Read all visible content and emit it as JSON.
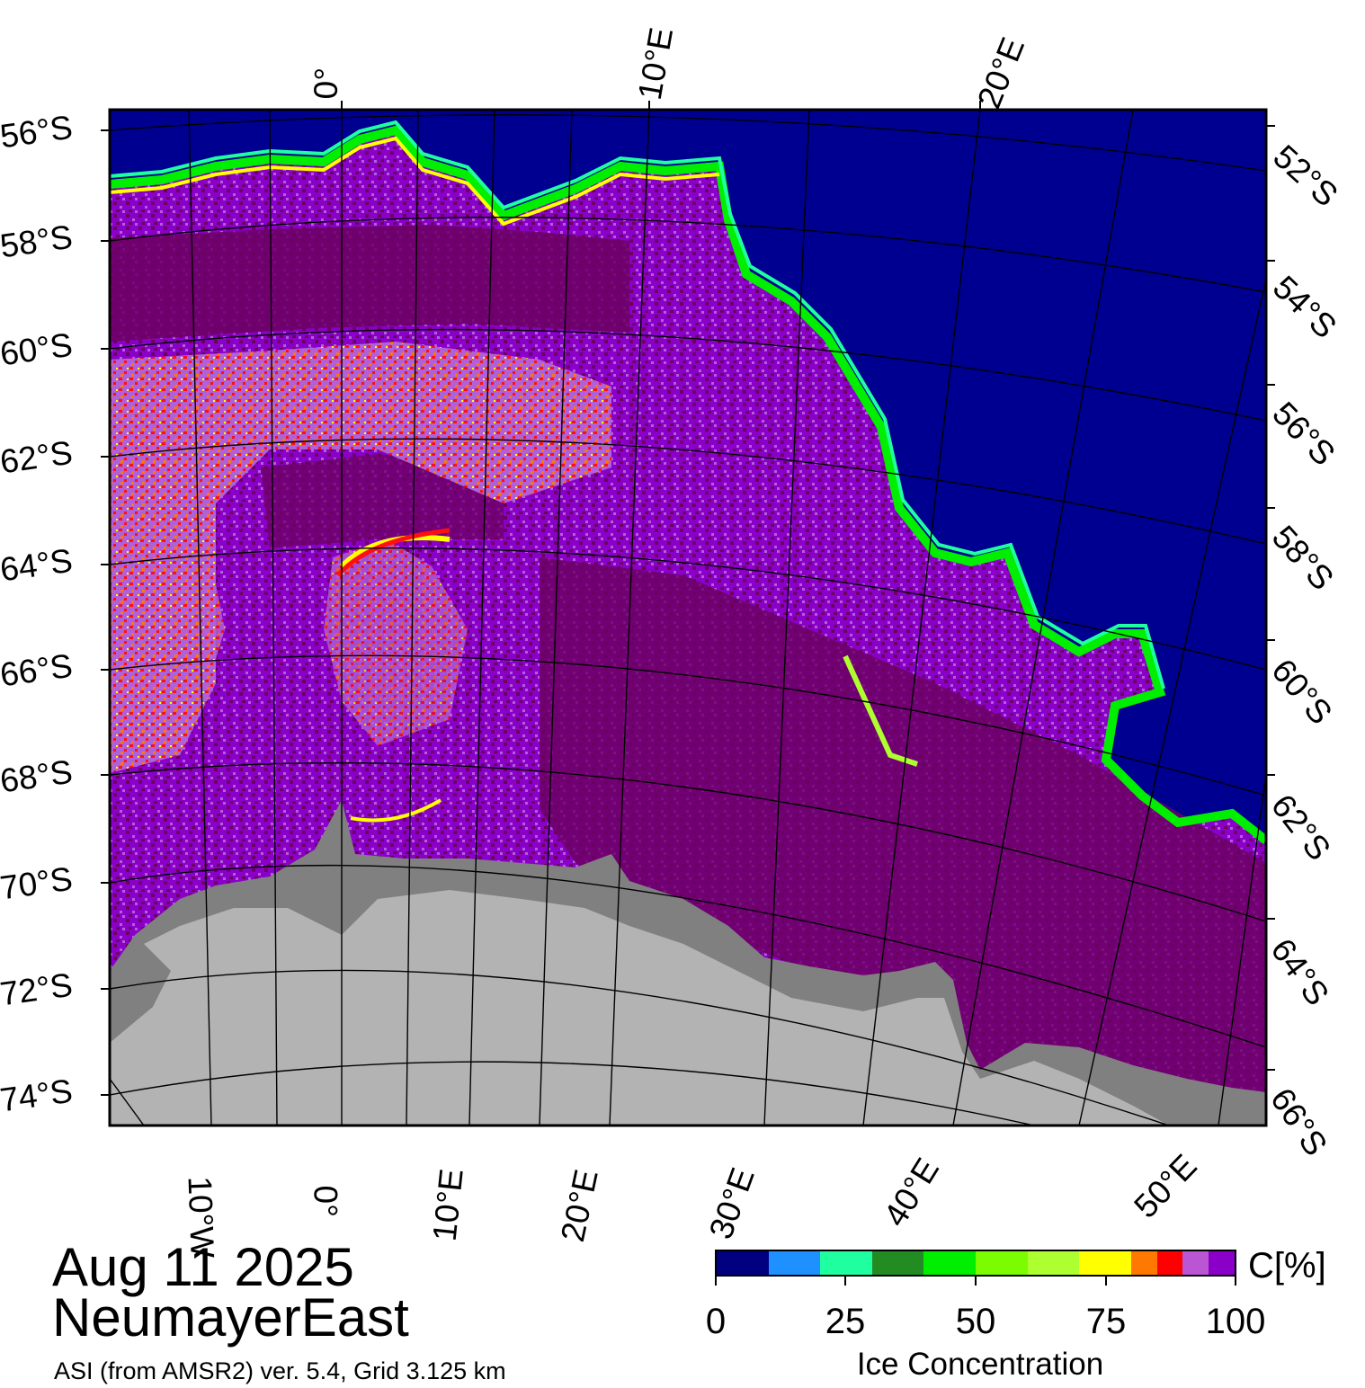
{
  "map": {
    "colors": {
      "open_water": "#000090",
      "land_ice": "#b3b3b3",
      "ice_shelf": "#808080",
      "ice_100": "#6b0060",
      "ice_95": "#8a00c8",
      "ice_90": "#b060d8",
      "ice_85": "#ff1010",
      "ice_80": "#ff7800",
      "ice_75": "#ffff00",
      "ice_edge_green": "#00ee00",
      "ice_edge_cyan": "#20ffa0"
    },
    "lat_labels_left": [
      "56°S",
      "58°S",
      "60°S",
      "62°S",
      "64°S",
      "66°S",
      "68°S",
      "70°S",
      "72°S",
      "74°S"
    ],
    "lat_labels_right": [
      "52°S",
      "54°S",
      "56°S",
      "58°S",
      "60°S",
      "62°S",
      "64°S",
      "66°S"
    ],
    "lon_labels_top": [
      "0°",
      "10°E",
      "20°E"
    ],
    "lon_labels_bottom": [
      "10°W",
      "0°",
      "10°E",
      "20°E",
      "30°E",
      "40°E",
      "50°E"
    ]
  },
  "caption": {
    "date": "Aug 11 2025",
    "region": "NeumayerEast",
    "credit": "ASI (from AMSR2) ver. 5.4,  Grid 3.125 km"
  },
  "colorbar": {
    "unit": "C[%]",
    "label": "Ice Concentration",
    "ticks": [
      "0",
      "25",
      "50",
      "75",
      "100"
    ],
    "colors": [
      "#000080",
      "#1e90ff",
      "#20ffa0",
      "#228b22",
      "#00ee00",
      "#7cfc00",
      "#adff2f",
      "#ffff00",
      "#ff7800",
      "#ff0000",
      "#ba55d3",
      "#8a00c8"
    ]
  }
}
